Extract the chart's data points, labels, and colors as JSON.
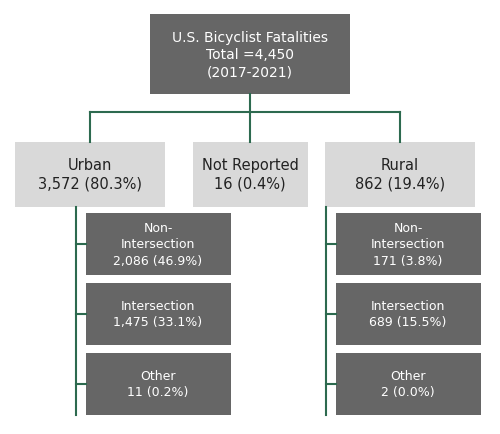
{
  "title_text": "U.S. Bicyclist Fatalities\nTotal =4,450\n(2017-2021)",
  "title_box_color": "#666666",
  "title_text_color": "#ffffff",
  "level1": [
    {
      "label": "Urban\n3,572 (80.3%)",
      "box_color": "#d9d9d9",
      "text_color": "#222222"
    },
    {
      "label": "Not Reported\n16 (0.4%)",
      "box_color": "#d9d9d9",
      "text_color": "#222222"
    },
    {
      "label": "Rural\n862 (19.4%)",
      "box_color": "#d9d9d9",
      "text_color": "#222222"
    }
  ],
  "urban_children": [
    {
      "label": "Non-\nIntersection\n2,086 (46.9%)",
      "box_color": "#666666",
      "text_color": "#ffffff"
    },
    {
      "label": "Intersection\n1,475 (33.1%)",
      "box_color": "#666666",
      "text_color": "#ffffff"
    },
    {
      "label": "Other\n11 (0.2%)",
      "box_color": "#666666",
      "text_color": "#ffffff"
    }
  ],
  "rural_children": [
    {
      "label": "Non-\nIntersection\n171 (3.8%)",
      "box_color": "#666666",
      "text_color": "#ffffff"
    },
    {
      "label": "Intersection\n689 (15.5%)",
      "box_color": "#666666",
      "text_color": "#ffffff"
    },
    {
      "label": "Other\n2 (0.0%)",
      "box_color": "#666666",
      "text_color": "#ffffff"
    }
  ],
  "connector_color": "#2d6a4f",
  "background_color": "#ffffff",
  "figsize": [
    5.0,
    4.35
  ],
  "dpi": 100
}
